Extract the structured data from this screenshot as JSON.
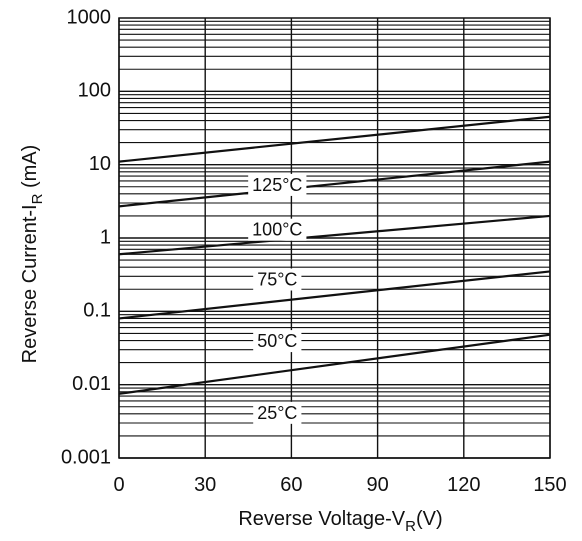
{
  "chart_data": {
    "type": "line",
    "xlabel": "Reverse Voltage-V",
    "xlabel_sub": "R",
    "xlabel_suffix": "(V)",
    "ylabel": "Reverse Current-I",
    "ylabel_sub": "R",
    "ylabel_suffix": " (mA)",
    "xlim": [
      0,
      150
    ],
    "ylim": [
      0.001,
      1000
    ],
    "y_scale": "log",
    "grid": true,
    "x_ticks": [
      0,
      30,
      60,
      90,
      120,
      150
    ],
    "x_tick_labels": [
      "0",
      "30",
      "60",
      "90",
      "120",
      "150"
    ],
    "y_ticks": [
      0.001,
      0.01,
      0.1,
      1,
      10,
      100,
      1000
    ],
    "y_tick_labels": [
      "0.001",
      "0.01",
      "0.1",
      "1",
      "10",
      "100",
      "1000"
    ],
    "series": [
      {
        "name": "125°C",
        "x": [
          0,
          150
        ],
        "y": [
          11,
          45
        ]
      },
      {
        "name": "100°C",
        "x": [
          0,
          150
        ],
        "y": [
          2.7,
          11
        ]
      },
      {
        "name": "75°C",
        "x": [
          0,
          150
        ],
        "y": [
          0.6,
          2.0
        ]
      },
      {
        "name": "50°C",
        "x": [
          0,
          150
        ],
        "y": [
          0.08,
          0.35
        ]
      },
      {
        "name": "25°C",
        "x": [
          0,
          150
        ],
        "y": [
          0.0075,
          0.048
        ]
      }
    ]
  }
}
